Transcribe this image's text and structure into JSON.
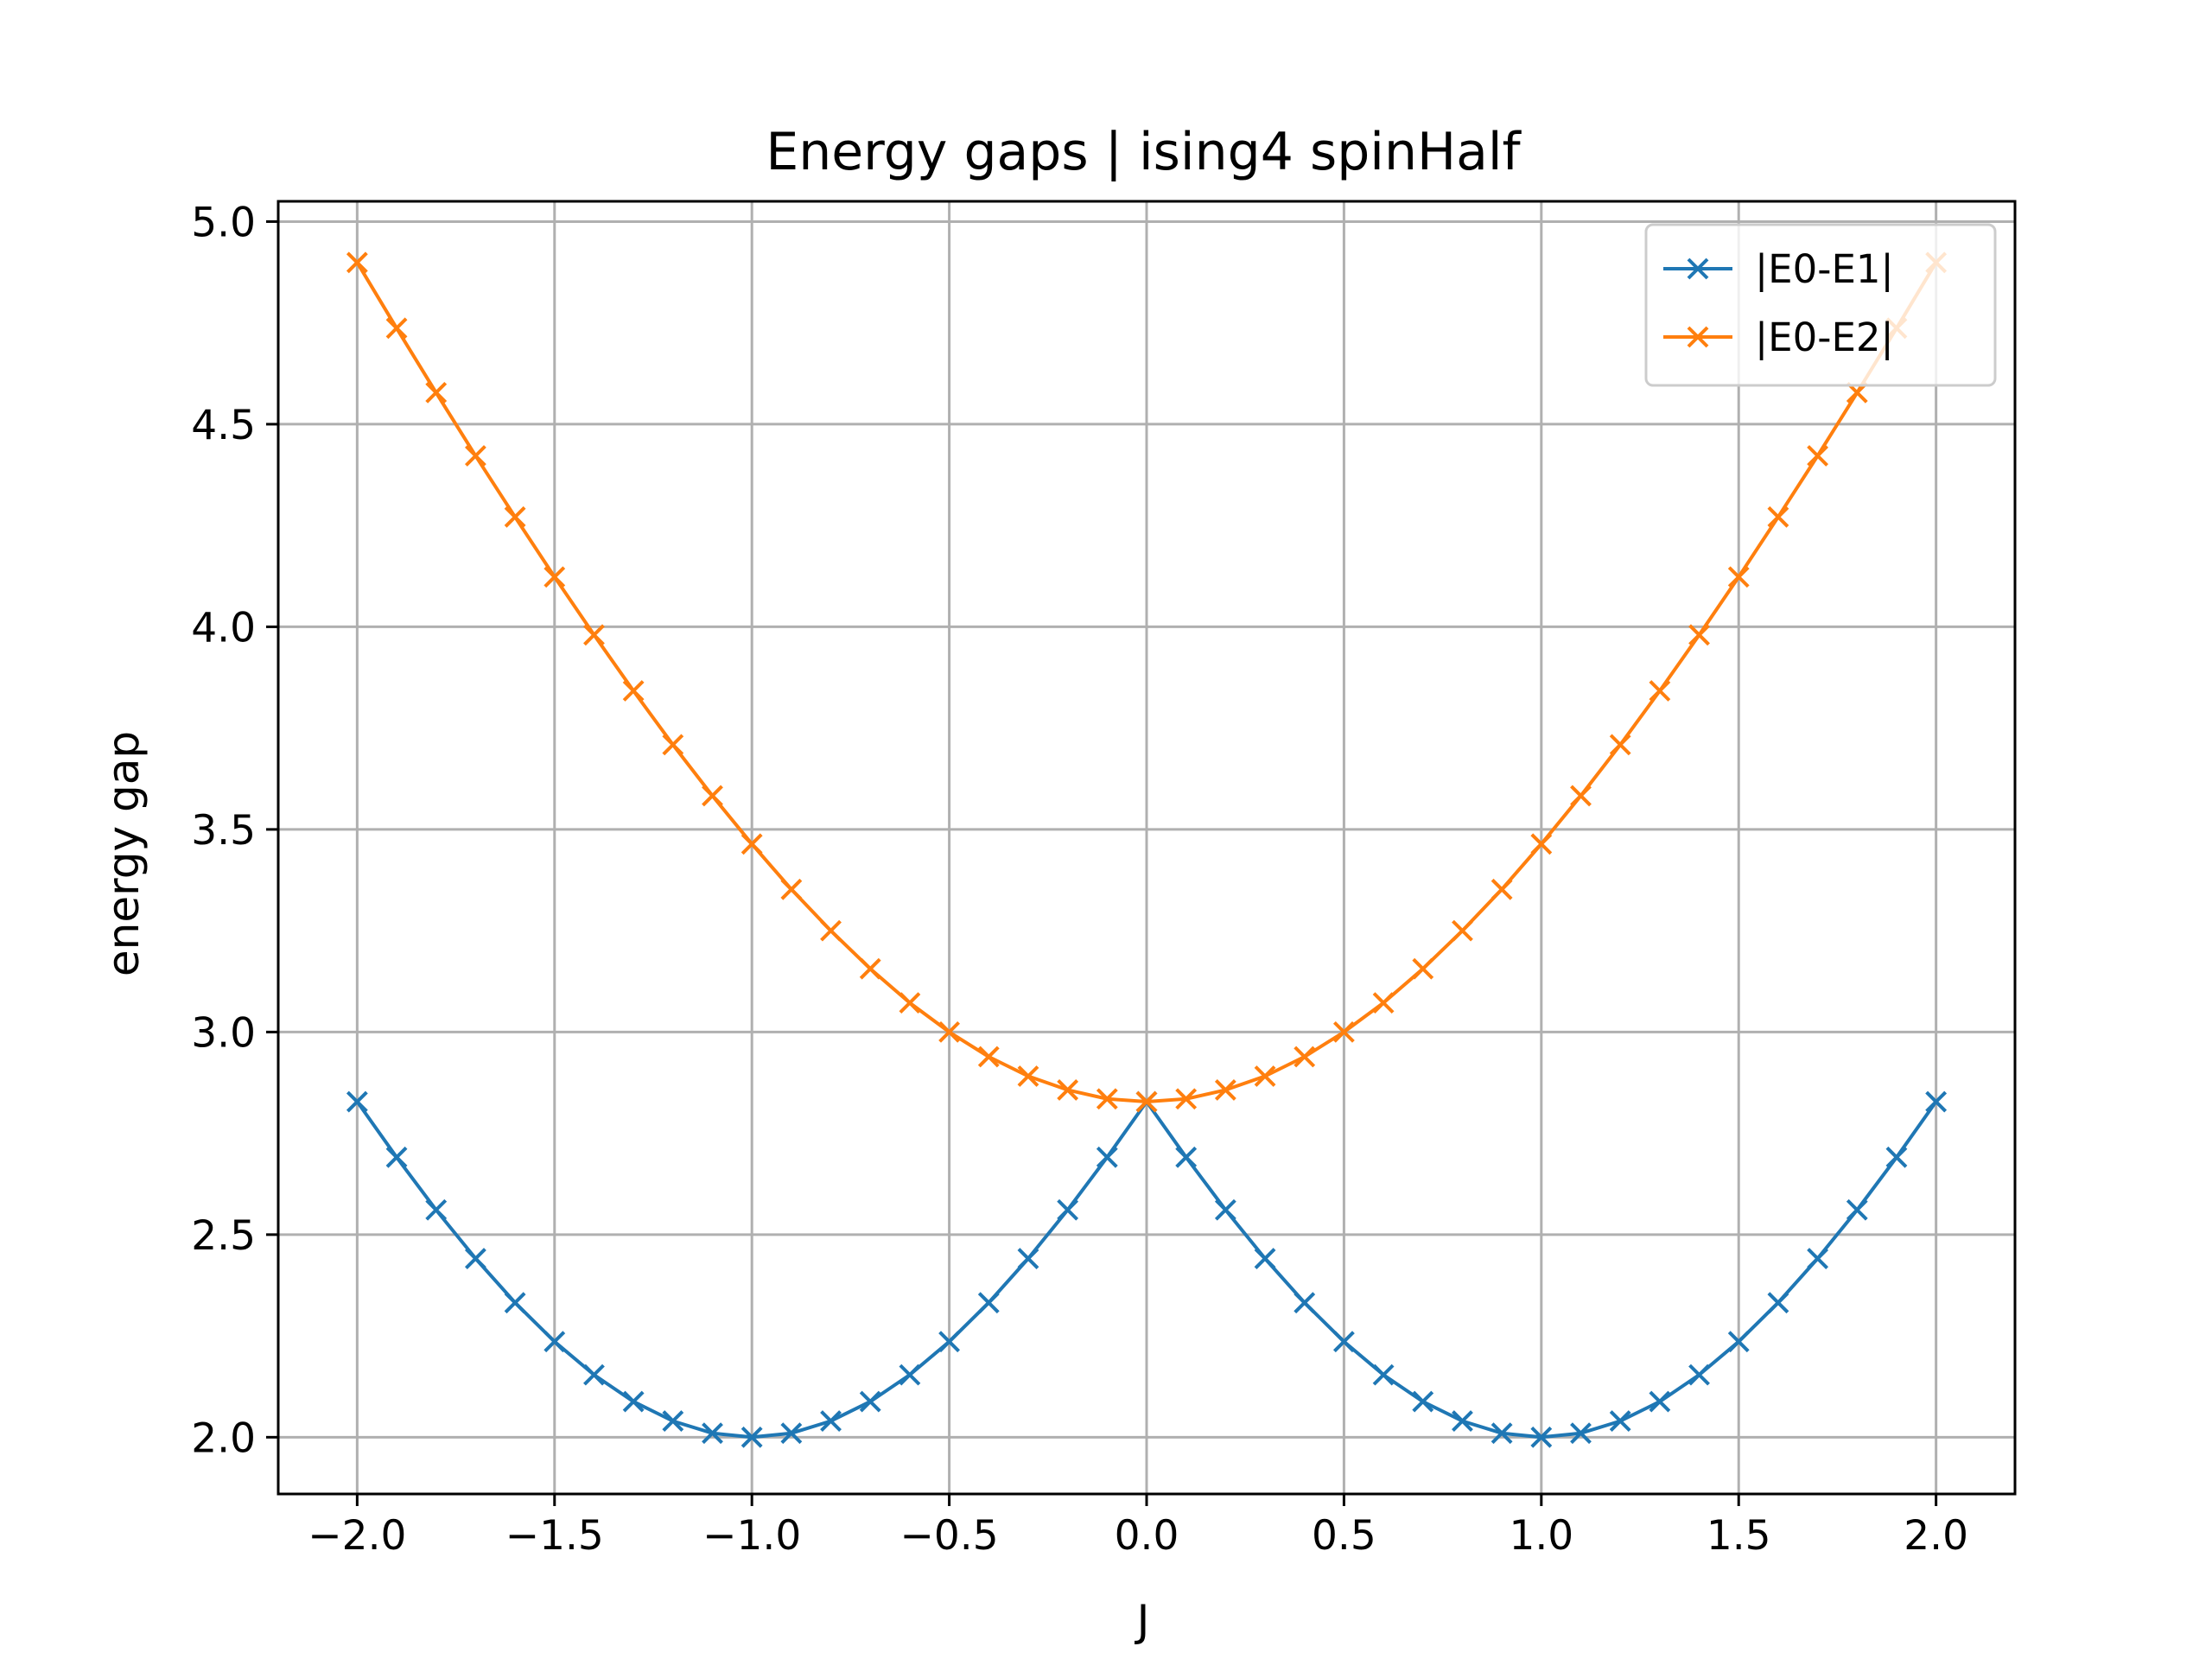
{
  "chart_data": {
    "type": "line",
    "title": "Energy gaps | ising4 spinHalf",
    "xlabel": "J",
    "ylabel": "energy gap",
    "xlim": [
      -2.2,
      2.2
    ],
    "ylim": [
      1.86,
      5.05
    ],
    "xticks": [
      -2.0,
      -1.5,
      -1.0,
      -0.5,
      0.0,
      0.5,
      1.0,
      1.5,
      2.0
    ],
    "xtick_labels": [
      "−2.0",
      "−1.5",
      "−1.0",
      "−0.5",
      "0.0",
      "0.5",
      "1.0",
      "1.5",
      "2.0"
    ],
    "yticks": [
      2.0,
      2.5,
      3.0,
      3.5,
      4.0,
      4.5,
      5.0
    ],
    "ytick_labels": [
      "2.0",
      "2.5",
      "3.0",
      "3.5",
      "4.0",
      "4.5",
      "5.0"
    ],
    "grid": true,
    "legend_position": "top-right",
    "marker": "x",
    "x": [
      -2.0,
      -1.9,
      -1.8,
      -1.7,
      -1.6,
      -1.5,
      -1.4,
      -1.3,
      -1.2,
      -1.1,
      -1.0,
      -0.9,
      -0.8,
      -0.7,
      -0.6,
      -0.5,
      -0.4,
      -0.3,
      -0.2,
      -0.1,
      0.0,
      0.1,
      0.2,
      0.3,
      0.4,
      0.5,
      0.6,
      0.7,
      0.8,
      0.9,
      1.0,
      1.1,
      1.2,
      1.3,
      1.4,
      1.5,
      1.6,
      1.7,
      1.8,
      1.9,
      2.0
    ],
    "series": [
      {
        "name": "|E0-E1|",
        "color": "#1f77b4",
        "values": [
          2.828,
          2.691,
          2.561,
          2.441,
          2.332,
          2.236,
          2.154,
          2.088,
          2.04,
          2.01,
          2.0,
          2.01,
          2.04,
          2.088,
          2.154,
          2.236,
          2.332,
          2.441,
          2.561,
          2.691,
          2.828,
          2.691,
          2.561,
          2.441,
          2.332,
          2.236,
          2.154,
          2.088,
          2.04,
          2.01,
          2.0,
          2.01,
          2.04,
          2.088,
          2.154,
          2.236,
          2.332,
          2.441,
          2.561,
          2.691,
          2.828
        ]
      },
      {
        "name": "|E0-E2|",
        "color": "#ff7f0e",
        "values": [
          4.899,
          4.737,
          4.578,
          4.422,
          4.271,
          4.123,
          3.98,
          3.842,
          3.709,
          3.583,
          3.464,
          3.352,
          3.25,
          3.156,
          3.072,
          3.0,
          2.939,
          2.891,
          2.857,
          2.835,
          2.828,
          2.835,
          2.857,
          2.891,
          2.939,
          3.0,
          3.072,
          3.156,
          3.25,
          3.352,
          3.464,
          3.583,
          3.709,
          3.842,
          3.98,
          4.123,
          4.271,
          4.422,
          4.578,
          4.737,
          4.899
        ]
      }
    ]
  }
}
